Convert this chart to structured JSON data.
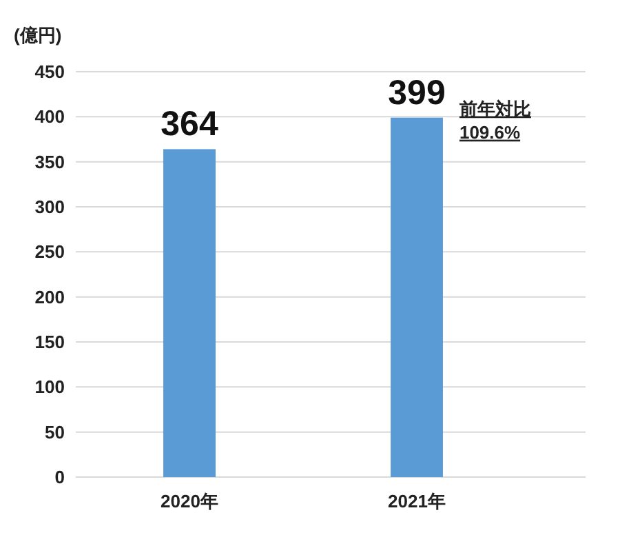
{
  "chart_data": {
    "type": "bar",
    "ylabel": "(億円)",
    "categories": [
      "2020年",
      "2021年"
    ],
    "values": [
      364,
      399
    ],
    "color": "#5b9bd5",
    "ylim": [
      0,
      450
    ],
    "yticks": [
      0,
      50,
      100,
      150,
      200,
      250,
      300,
      350,
      400,
      450
    ],
    "grid": "y",
    "data_labels": true,
    "annotations": [
      "前年対比\n109.6%"
    ]
  }
}
